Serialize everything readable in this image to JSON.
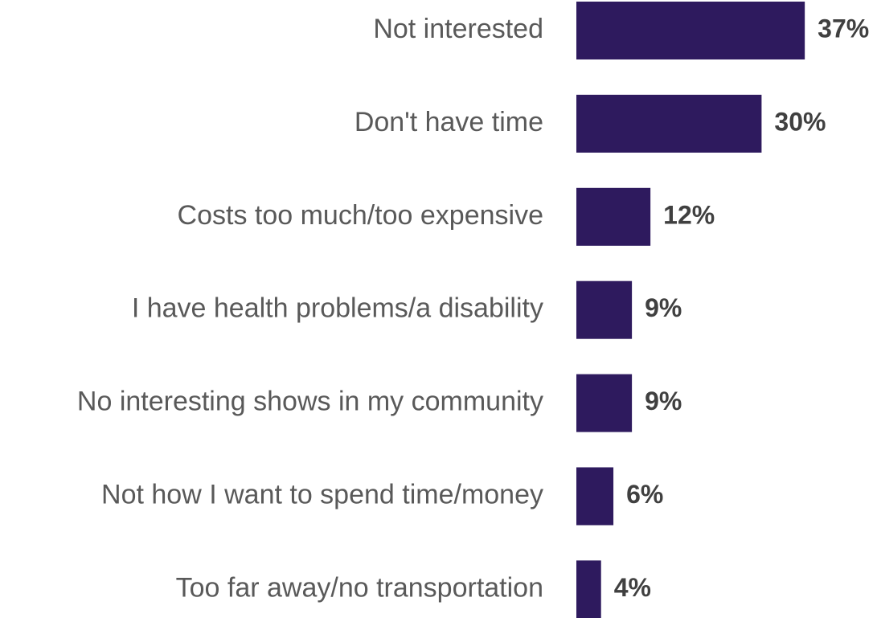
{
  "chart_data": {
    "type": "bar",
    "orientation": "horizontal",
    "categories": [
      "Not interested",
      "Don't have time",
      "Costs too much/too expensive",
      "I have health problems/a disability",
      "No interesting shows in my community",
      "Not how I want to spend time/money",
      "Too far away/no transportation"
    ],
    "values": [
      37,
      30,
      12,
      9,
      9,
      6,
      4
    ],
    "value_labels": [
      "37%",
      "30%",
      "12%",
      "9%",
      "9%",
      "6%",
      "4%"
    ],
    "color": "#2e1a5e"
  }
}
